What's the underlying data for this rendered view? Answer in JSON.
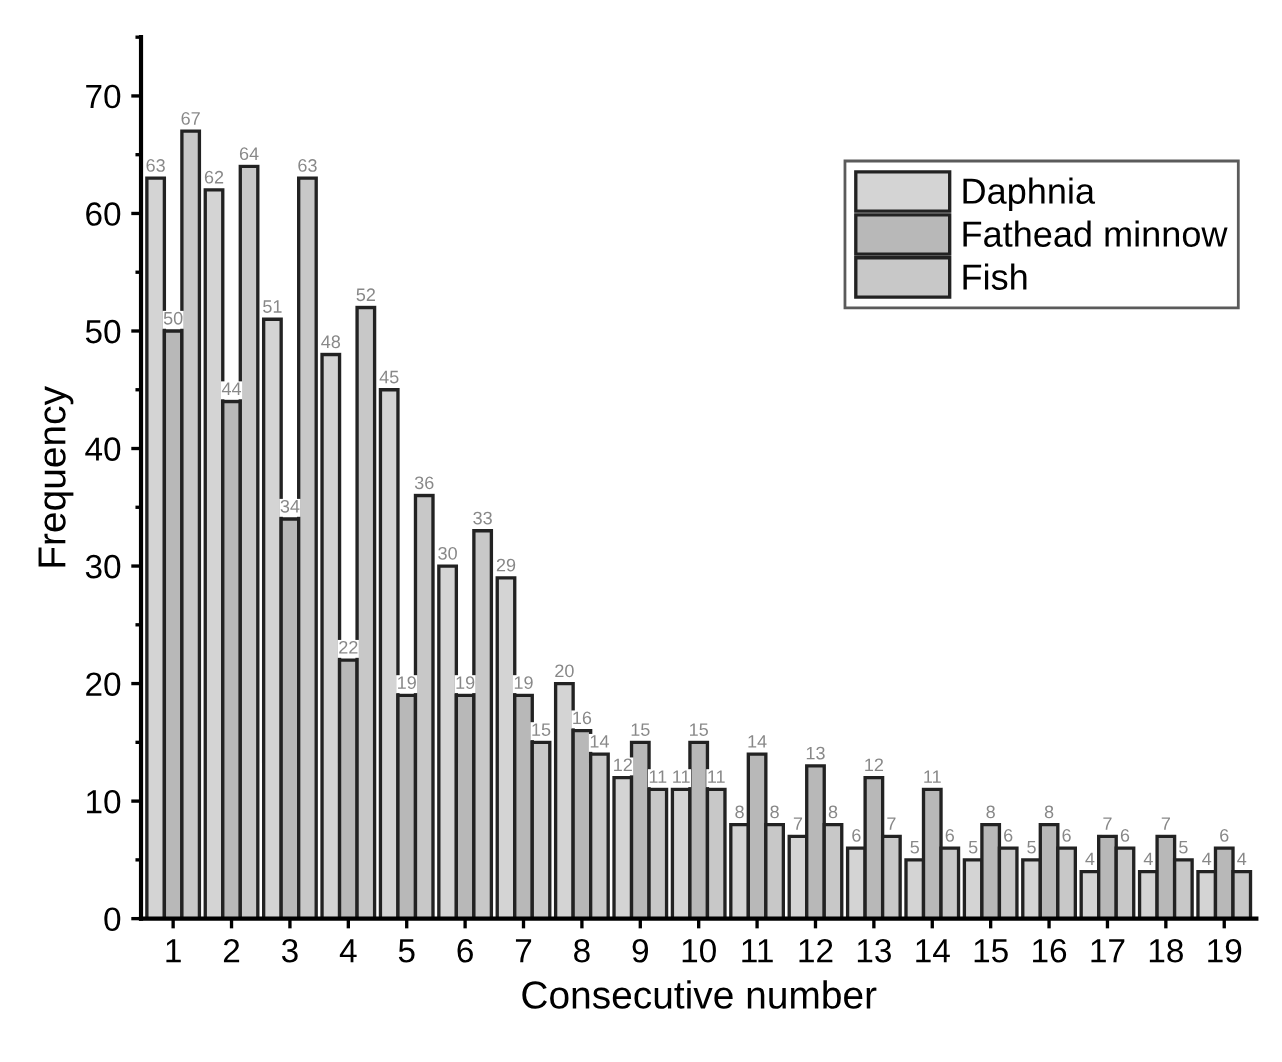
{
  "chart_data": {
    "type": "bar",
    "xlabel": "Consecutive number",
    "ylabel": "Frequency",
    "categories": [
      "1",
      "2",
      "3",
      "4",
      "5",
      "6",
      "7",
      "8",
      "9",
      "10",
      "11",
      "12",
      "13",
      "14",
      "15",
      "16",
      "17",
      "18",
      "19"
    ],
    "series": [
      {
        "name": "Daphnia",
        "color": "#d4d4d4",
        "values": [
          63,
          62,
          51,
          48,
          45,
          30,
          29,
          20,
          12,
          11,
          8,
          7,
          6,
          5,
          5,
          5,
          4,
          4,
          4
        ]
      },
      {
        "name": "Fathead minnow",
        "color": "#b8b8b8",
        "values": [
          50,
          44,
          34,
          22,
          19,
          19,
          19,
          16,
          15,
          15,
          14,
          13,
          12,
          11,
          8,
          8,
          7,
          7,
          6
        ]
      },
      {
        "name": "Fish",
        "color": "#c8c8c8",
        "values": [
          67,
          64,
          63,
          52,
          36,
          33,
          15,
          14,
          11,
          11,
          8,
          8,
          7,
          6,
          6,
          6,
          6,
          5,
          4
        ]
      }
    ],
    "ylim": [
      0,
      75
    ],
    "yticks": [
      0,
      10,
      20,
      30,
      40,
      50,
      60,
      70
    ],
    "grid": false,
    "legend": "top right",
    "data_labels": true
  }
}
